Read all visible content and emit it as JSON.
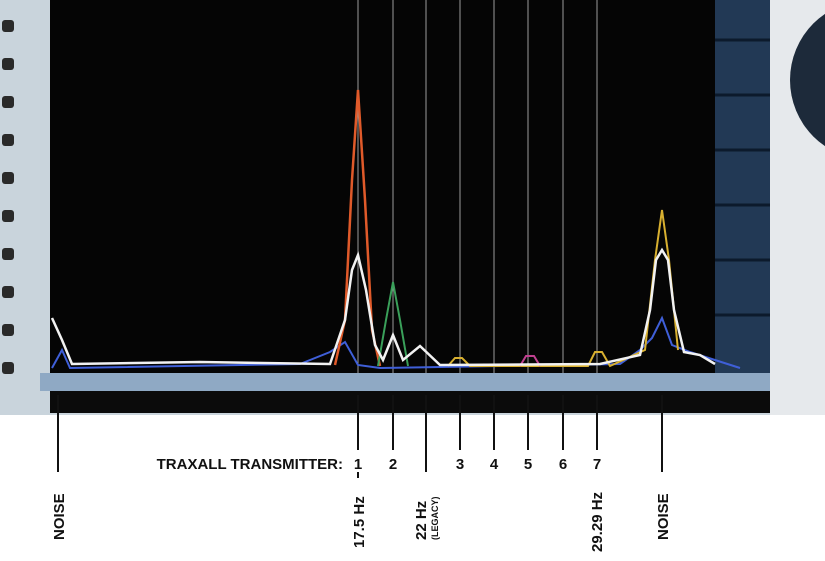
{
  "transmitter_label": "TRAXALL TRANSMITTER:",
  "channels": [
    "1",
    "2",
    "3",
    "4",
    "5",
    "6",
    "7"
  ],
  "annotations": {
    "noise_left": "NOISE",
    "freq_channel_1": "17.5 Hz",
    "freq_legacy": "22 Hz",
    "legacy_note": "(LEGACY)",
    "freq_channel_7": "29.29 Hz",
    "noise_right": "NOISE"
  }
}
